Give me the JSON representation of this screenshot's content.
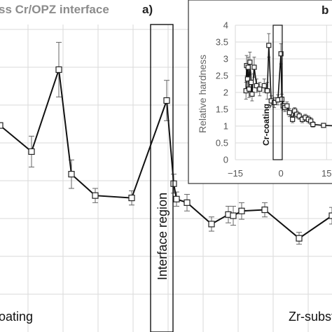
{
  "chart_data": [
    {
      "type": "line",
      "title": "ss Cr/OPZ interface",
      "panel": "a)",
      "region_label": "Interface region",
      "left_label": "oating",
      "right_label": "Zr-subst",
      "grid": true,
      "points": [
        {
          "x": 0,
          "y": 2.45,
          "err": 0.0
        },
        {
          "x": 45,
          "y": 2.23,
          "err": 0.13
        },
        {
          "x": 84,
          "y": 2.92,
          "err": 0.23
        },
        {
          "x": 102,
          "y": 2.04,
          "err": 0.12
        },
        {
          "x": 136,
          "y": 1.86,
          "err": 0.06
        },
        {
          "x": 188,
          "y": 1.84,
          "err": 0.06
        },
        {
          "x": 238,
          "y": 2.66,
          "err": 0.17
        },
        {
          "x": 248,
          "y": 1.96,
          "err": 0.08
        },
        {
          "x": 252,
          "y": 1.83,
          "err": 0.06
        },
        {
          "x": 267,
          "y": 1.8,
          "err": 0.07
        },
        {
          "x": 302,
          "y": 1.62,
          "err": 0.06
        },
        {
          "x": 326,
          "y": 1.7,
          "err": 0.07
        },
        {
          "x": 333,
          "y": 1.69,
          "err": 0.08
        },
        {
          "x": 345,
          "y": 1.73,
          "err": 0.07
        },
        {
          "x": 378,
          "y": 1.74,
          "err": 0.06
        },
        {
          "x": 427,
          "y": 1.5,
          "err": 0.05
        },
        {
          "x": 474,
          "y": 1.69,
          "err": 0.07
        }
      ],
      "xlim": [
        0,
        474
      ],
      "ylim": [
        1.0,
        3.3
      ]
    },
    {
      "type": "line",
      "panel": "b",
      "ylabel": "Relative hardness",
      "region_label": "Cr-coating",
      "xlim": [
        -15,
        20
      ],
      "ylim": [
        0,
        4
      ],
      "x_ticks": [
        -15,
        0,
        15
      ],
      "y_ticks": [
        0,
        0.5,
        1,
        1.5,
        2,
        2.5,
        3,
        3.5,
        4
      ],
      "grid": true,
      "points": [
        {
          "x": -11.5,
          "y": 2.05,
          "err": 0.25
        },
        {
          "x": -11.3,
          "y": 2.8,
          "err": 0.3
        },
        {
          "x": -11.0,
          "y": 2.4,
          "err": 0.35
        },
        {
          "x": -10.8,
          "y": 2.75,
          "err": 0.3
        },
        {
          "x": -10.5,
          "y": 2.1,
          "err": 0.25
        },
        {
          "x": -10.2,
          "y": 2.9,
          "err": 0.3
        },
        {
          "x": -9.8,
          "y": 2.3,
          "err": 0.25
        },
        {
          "x": -9.5,
          "y": 1.95,
          "err": 0.2
        },
        {
          "x": -8.8,
          "y": 2.75,
          "err": 0.3
        },
        {
          "x": -8.0,
          "y": 2.2,
          "err": 0.2
        },
        {
          "x": -7.0,
          "y": 2.1,
          "err": 0.2
        },
        {
          "x": -5.5,
          "y": 2.2,
          "err": 0.2
        },
        {
          "x": -4.5,
          "y": 2.05,
          "err": 0.25
        },
        {
          "x": -4.0,
          "y": 3.4,
          "err": 0.35
        },
        {
          "x": -3.2,
          "y": 1.75,
          "err": 0.15
        },
        {
          "x": -2.2,
          "y": 1.7,
          "err": 0.15
        },
        {
          "x": -1.0,
          "y": 1.78,
          "err": 0.15
        },
        {
          "x": 0.0,
          "y": 3.15,
          "err": 0.3
        },
        {
          "x": 0.3,
          "y": 1.8,
          "err": 0.15
        },
        {
          "x": 0.7,
          "y": 1.6,
          "err": 0.12
        },
        {
          "x": 1.3,
          "y": 1.55,
          "err": 0.12
        },
        {
          "x": 2.0,
          "y": 1.6,
          "err": 0.12
        },
        {
          "x": 2.8,
          "y": 1.4,
          "err": 0.12
        },
        {
          "x": 3.8,
          "y": 1.2,
          "err": 0.1
        },
        {
          "x": 4.5,
          "y": 1.45,
          "err": 0.1
        },
        {
          "x": 5.2,
          "y": 1.35,
          "err": 0.1
        },
        {
          "x": 6.0,
          "y": 1.3,
          "err": 0.1
        },
        {
          "x": 7.0,
          "y": 1.2,
          "err": 0.1
        },
        {
          "x": 8.0,
          "y": 1.25,
          "err": 0.1
        },
        {
          "x": 9.0,
          "y": 1.2,
          "err": 0.1
        },
        {
          "x": 9.8,
          "y": 1.15,
          "err": 0.1
        },
        {
          "x": 10.5,
          "y": 1.05,
          "err": 0.08
        },
        {
          "x": 14.0,
          "y": 1.02,
          "err": 0.05
        },
        {
          "x": 20.0,
          "y": 1.0,
          "err": 0.05
        }
      ]
    }
  ]
}
